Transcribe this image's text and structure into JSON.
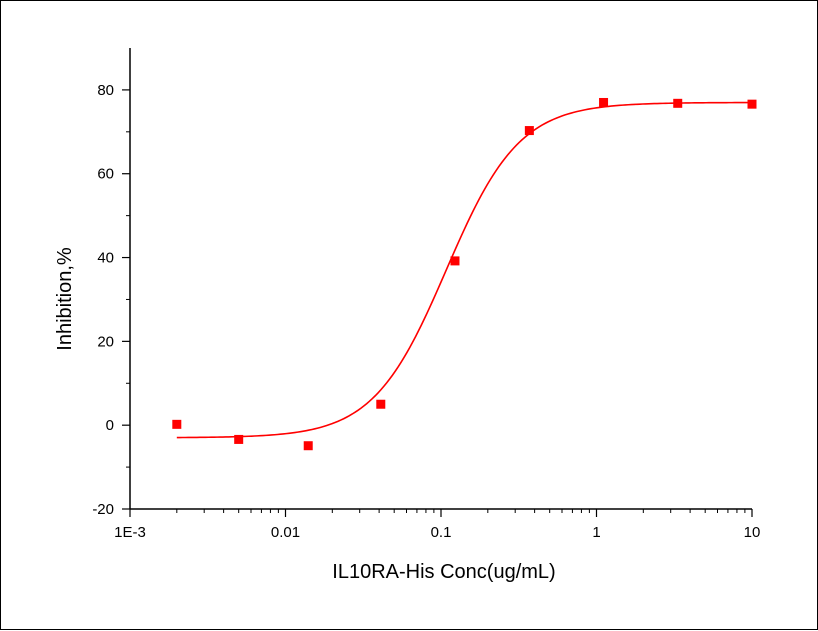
{
  "chart_data": {
    "type": "scatter",
    "xlabel": "IL10RA-His Conc(ug/mL)",
    "ylabel": "Inhibition,%",
    "xscale": "log",
    "xlim": [
      0.001,
      10
    ],
    "ylim": [
      -20,
      90
    ],
    "x_ticks": [
      {
        "value": 0.001,
        "label": "1E-3"
      },
      {
        "value": 0.01,
        "label": "0.01"
      },
      {
        "value": 0.1,
        "label": "0.1"
      },
      {
        "value": 1,
        "label": "1"
      },
      {
        "value": 10,
        "label": "10"
      }
    ],
    "y_ticks": [
      {
        "value": -20,
        "label": "-20"
      },
      {
        "value": 0,
        "label": "0"
      },
      {
        "value": 20,
        "label": "20"
      },
      {
        "value": 40,
        "label": "40"
      },
      {
        "value": 60,
        "label": "60"
      },
      {
        "value": 80,
        "label": "80"
      }
    ],
    "series": [
      {
        "kind": "points",
        "color": "#ff0000",
        "marker": "square",
        "x": [
          0.002,
          0.005,
          0.014,
          0.041,
          0.123,
          0.37,
          1.11,
          3.33,
          10
        ],
        "y": [
          0.2,
          -3.4,
          -4.9,
          5.0,
          39.2,
          70.3,
          77.0,
          76.8,
          76.6
        ]
      },
      {
        "kind": "fit",
        "color": "#ff0000",
        "model": "4PL",
        "params": {
          "bottom": -3.0,
          "top": 77.0,
          "ec50": 0.108,
          "hill": 1.85
        }
      }
    ],
    "grid": false,
    "legend": "none"
  }
}
